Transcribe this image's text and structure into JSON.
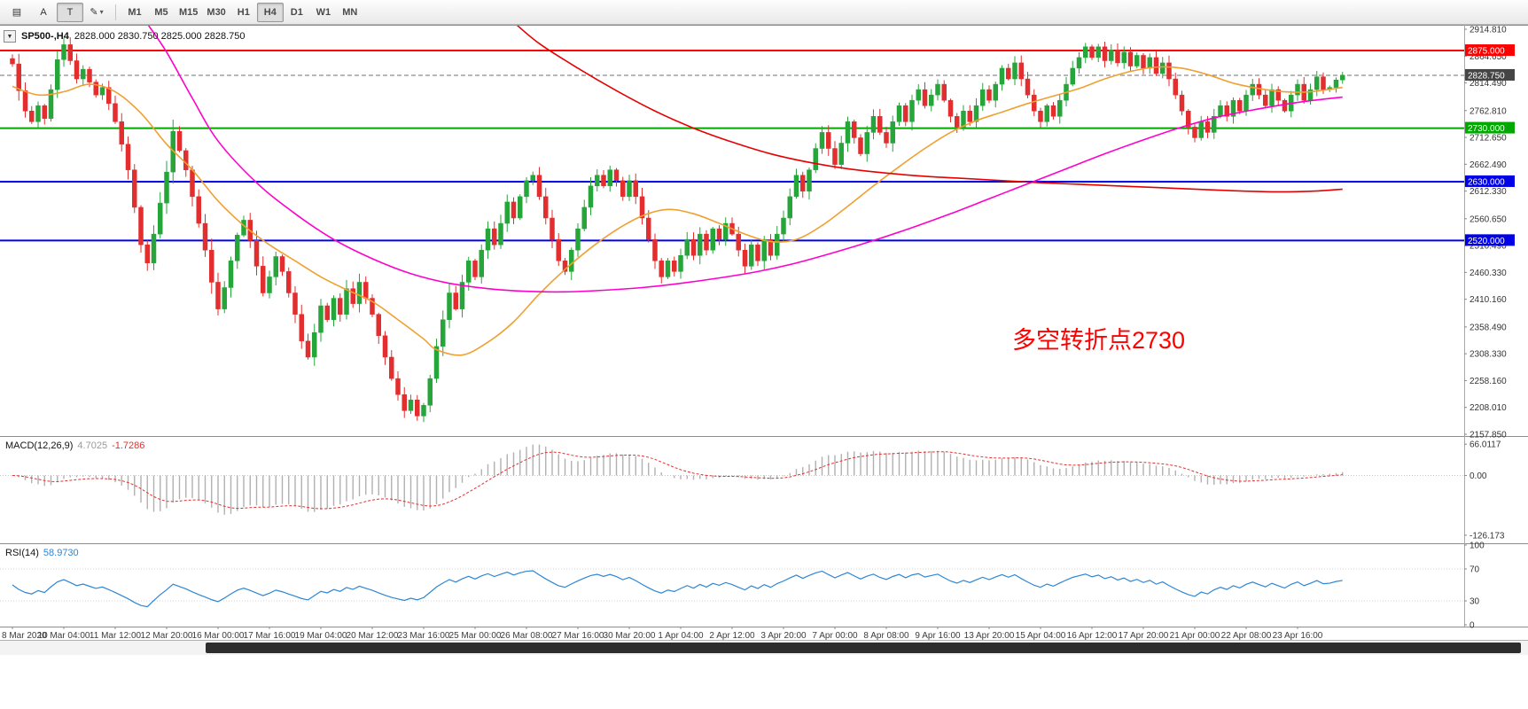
{
  "toolbar": {
    "left_buttons": [
      {
        "name": "tick-chart-icon",
        "glyph": "▤"
      },
      {
        "name": "cursor-tool",
        "glyph": "A"
      },
      {
        "name": "text-label-tool",
        "glyph": "T"
      },
      {
        "name": "draw-tool",
        "glyph": "✎",
        "caret": "▾"
      }
    ],
    "timeframes": [
      "M1",
      "M5",
      "M15",
      "M30",
      "H1",
      "H4",
      "D1",
      "W1",
      "MN"
    ],
    "selected_timeframe": "H4"
  },
  "window": {
    "collapse_glyph": "▼",
    "title_symbol": "SP500-,H4",
    "title_ohlc": "2828.000 2830.750 2825.000 2828.750"
  },
  "macd_panel": {
    "name": "MACD(12,26,9)",
    "value_main": "4.7025",
    "value_signal": "-1.7286"
  },
  "rsi_panel": {
    "name": "RSI(14)",
    "value": "58.9730"
  },
  "annotation": {
    "text": "多空转折点2730",
    "color": "#ff0000"
  },
  "chart_data": {
    "type": "candlestick",
    "symbol": "SP500-",
    "timeframe": "H4",
    "title": "SP500-,H4",
    "ohlc_current": {
      "open": 2828.0,
      "high": 2830.75,
      "low": 2825.0,
      "close": 2828.75
    },
    "colors": {
      "up": "#26a63a",
      "down": "#e22e2e",
      "bid": "#6f6f6f"
    },
    "y_axis": {
      "min": 2157.85,
      "max": 2914.81,
      "tick_labels": [
        "2914.810",
        "2864.650",
        "2814.490",
        "2762.810",
        "2712.650",
        "2662.490",
        "2612.330",
        "2560.650",
        "2510.490",
        "2460.330",
        "2410.160",
        "2358.490",
        "2308.330",
        "2258.160",
        "2208.010",
        "2157.850"
      ]
    },
    "closes": [
      2850,
      2800,
      2762,
      2742,
      2772,
      2748,
      2802,
      2858,
      2886,
      2856,
      2822,
      2840,
      2816,
      2792,
      2806,
      2776,
      2742,
      2700,
      2652,
      2582,
      2512,
      2478,
      2532,
      2590,
      2648,
      2724,
      2688,
      2652,
      2602,
      2552,
      2502,
      2442,
      2392,
      2432,
      2482,
      2530,
      2558,
      2520,
      2472,
      2422,
      2452,
      2490,
      2462,
      2422,
      2382,
      2332,
      2302,
      2348,
      2398,
      2372,
      2412,
      2382,
      2430,
      2402,
      2442,
      2412,
      2382,
      2342,
      2302,
      2262,
      2232,
      2202,
      2222,
      2192,
      2212,
      2262,
      2322,
      2372,
      2422,
      2392,
      2442,
      2482,
      2452,
      2502,
      2542,
      2512,
      2552,
      2592,
      2562,
      2602,
      2632,
      2642,
      2602,
      2562,
      2522,
      2482,
      2462,
      2502,
      2542,
      2582,
      2622,
      2642,
      2622,
      2652,
      2632,
      2602,
      2632,
      2602,
      2562,
      2522,
      2482,
      2452,
      2482,
      2462,
      2492,
      2522,
      2492,
      2532,
      2502,
      2542,
      2522,
      2552,
      2532,
      2502,
      2472,
      2512,
      2482,
      2522,
      2492,
      2532,
      2562,
      2602,
      2642,
      2612,
      2652,
      2692,
      2722,
      2692,
      2662,
      2702,
      2742,
      2712,
      2682,
      2722,
      2752,
      2722,
      2702,
      2742,
      2772,
      2742,
      2782,
      2802,
      2772,
      2792,
      2812,
      2782,
      2752,
      2732,
      2762,
      2742,
      2772,
      2802,
      2782,
      2812,
      2842,
      2822,
      2852,
      2822,
      2792,
      2762,
      2742,
      2772,
      2752,
      2782,
      2812,
      2842,
      2862,
      2882,
      2862,
      2882,
      2856,
      2876,
      2852,
      2872,
      2846,
      2866,
      2842,
      2862,
      2832,
      2852,
      2822,
      2792,
      2762,
      2732,
      2712,
      2742,
      2722,
      2752,
      2772,
      2752,
      2782,
      2762,
      2792,
      2812,
      2792,
      2772,
      2802,
      2782,
      2762,
      2792,
      2812,
      2782,
      2802,
      2826,
      2802,
      2806,
      2820,
      2828.75
    ],
    "hlines": [
      {
        "price": 2875.0,
        "color": "#ff0000",
        "label": "2875.000",
        "width": 2
      },
      {
        "price": 2828.75,
        "color": "#6f6f6f",
        "label": "2828.750",
        "width": 1,
        "dashed": true,
        "badge": "#454545"
      },
      {
        "price": 2730.0,
        "color": "#00a800",
        "label": "2730.000",
        "width": 2
      },
      {
        "price": 2630.0,
        "color": "#0000e6",
        "label": "2630.000",
        "width": 2
      },
      {
        "price": 2520.0,
        "color": "#0000e6",
        "label": "2520.000",
        "width": 2
      }
    ],
    "moving_averages": [
      {
        "name": "ma-fast",
        "color": "#f0a030",
        "points": [
          [
            0,
            2808
          ],
          [
            4,
            2792
          ],
          [
            8,
            2798
          ],
          [
            12,
            2812
          ],
          [
            16,
            2798
          ],
          [
            20,
            2758
          ],
          [
            24,
            2700
          ],
          [
            28,
            2652
          ],
          [
            32,
            2594
          ],
          [
            36,
            2548
          ],
          [
            40,
            2512
          ],
          [
            44,
            2482
          ],
          [
            48,
            2452
          ],
          [
            52,
            2428
          ],
          [
            56,
            2406
          ],
          [
            60,
            2372
          ],
          [
            64,
            2336
          ],
          [
            66,
            2316
          ],
          [
            70,
            2306
          ],
          [
            74,
            2330
          ],
          [
            78,
            2368
          ],
          [
            82,
            2420
          ],
          [
            86,
            2466
          ],
          [
            90,
            2506
          ],
          [
            94,
            2540
          ],
          [
            98,
            2566
          ],
          [
            102,
            2578
          ],
          [
            106,
            2570
          ],
          [
            110,
            2552
          ],
          [
            114,
            2532
          ],
          [
            118,
            2518
          ],
          [
            122,
            2522
          ],
          [
            126,
            2548
          ],
          [
            130,
            2584
          ],
          [
            134,
            2622
          ],
          [
            138,
            2658
          ],
          [
            142,
            2692
          ],
          [
            146,
            2722
          ],
          [
            150,
            2744
          ],
          [
            154,
            2760
          ],
          [
            158,
            2776
          ],
          [
            162,
            2790
          ],
          [
            166,
            2804
          ],
          [
            170,
            2822
          ],
          [
            174,
            2836
          ],
          [
            178,
            2844
          ],
          [
            182,
            2842
          ],
          [
            186,
            2830
          ],
          [
            190,
            2814
          ],
          [
            194,
            2804
          ],
          [
            198,
            2798
          ],
          [
            202,
            2798
          ],
          [
            207,
            2806
          ]
        ]
      },
      {
        "name": "ma-mid",
        "color": "#ff00cc",
        "points": [
          [
            21,
            2925
          ],
          [
            24,
            2872
          ],
          [
            28,
            2786
          ],
          [
            32,
            2706
          ],
          [
            38,
            2628
          ],
          [
            44,
            2570
          ],
          [
            50,
            2522
          ],
          [
            56,
            2486
          ],
          [
            62,
            2458
          ],
          [
            68,
            2440
          ],
          [
            74,
            2430
          ],
          [
            80,
            2425
          ],
          [
            86,
            2424
          ],
          [
            92,
            2427
          ],
          [
            98,
            2432
          ],
          [
            104,
            2440
          ],
          [
            110,
            2450
          ],
          [
            116,
            2462
          ],
          [
            122,
            2478
          ],
          [
            128,
            2498
          ],
          [
            134,
            2520
          ],
          [
            140,
            2544
          ],
          [
            146,
            2570
          ],
          [
            152,
            2598
          ],
          [
            158,
            2626
          ],
          [
            164,
            2654
          ],
          [
            170,
            2682
          ],
          [
            176,
            2708
          ],
          [
            182,
            2732
          ],
          [
            188,
            2752
          ],
          [
            194,
            2766
          ],
          [
            200,
            2778
          ],
          [
            204,
            2784
          ],
          [
            207,
            2788
          ]
        ]
      },
      {
        "name": "ma-slow",
        "color": "#e60000",
        "points": [
          [
            78,
            2928
          ],
          [
            82,
            2888
          ],
          [
            88,
            2842
          ],
          [
            94,
            2800
          ],
          [
            100,
            2762
          ],
          [
            106,
            2730
          ],
          [
            112,
            2704
          ],
          [
            118,
            2682
          ],
          [
            124,
            2666
          ],
          [
            130,
            2654
          ],
          [
            136,
            2646
          ],
          [
            142,
            2640
          ],
          [
            148,
            2636
          ],
          [
            154,
            2632
          ],
          [
            160,
            2628
          ],
          [
            166,
            2625
          ],
          [
            172,
            2622
          ],
          [
            178,
            2619
          ],
          [
            184,
            2616
          ],
          [
            190,
            2613
          ],
          [
            196,
            2611
          ],
          [
            202,
            2612
          ],
          [
            207,
            2616
          ]
        ]
      }
    ],
    "time_labels": [
      {
        "bar": 0,
        "text": "8 Mar 2020"
      },
      {
        "bar": 8,
        "text": "10 Mar 04:00"
      },
      {
        "bar": 16,
        "text": "11 Mar 12:00"
      },
      {
        "bar": 24,
        "text": "12 Mar 20:00"
      },
      {
        "bar": 32,
        "text": "16 Mar 00:00"
      },
      {
        "bar": 40,
        "text": "17 Mar 16:00"
      },
      {
        "bar": 48,
        "text": "19 Mar 04:00"
      },
      {
        "bar": 56,
        "text": "20 Mar 12:00"
      },
      {
        "bar": 64,
        "text": "23 Mar 16:00"
      },
      {
        "bar": 72,
        "text": "25 Mar 00:00"
      },
      {
        "bar": 80,
        "text": "26 Mar 08:00"
      },
      {
        "bar": 88,
        "text": "27 Mar 16:00"
      },
      {
        "bar": 96,
        "text": "30 Mar 20:00"
      },
      {
        "bar": 104,
        "text": "1 Apr 04:00"
      },
      {
        "bar": 112,
        "text": "2 Apr 12:00"
      },
      {
        "bar": 120,
        "text": "3 Apr 20:00"
      },
      {
        "bar": 128,
        "text": "7 Apr 00:00"
      },
      {
        "bar": 136,
        "text": "8 Apr 08:00"
      },
      {
        "bar": 144,
        "text": "9 Apr 16:00"
      },
      {
        "bar": 152,
        "text": "13 Apr 20:00"
      },
      {
        "bar": 160,
        "text": "15 Apr 04:00"
      },
      {
        "bar": 168,
        "text": "16 Apr 12:00"
      },
      {
        "bar": 176,
        "text": "17 Apr 20:00"
      },
      {
        "bar": 184,
        "text": "21 Apr 00:00"
      },
      {
        "bar": 192,
        "text": "22 Apr 08:00"
      },
      {
        "bar": 200,
        "text": "23 Apr 16:00"
      }
    ],
    "macd": {
      "fast": 12,
      "slow": 26,
      "signal": 9,
      "scale_min": -132,
      "scale_max": 72,
      "histogram_color": "#b0b0b0",
      "signal_color": "#e03131",
      "axis_ticks": [
        {
          "v": 66.0117,
          "text": "66.0117"
        },
        {
          "v": 0,
          "text": "0.00"
        },
        {
          "v": -126.173,
          "text": "-126.173"
        }
      ]
    },
    "rsi": {
      "period": 14,
      "line_color": "#2e86d4",
      "levels": [
        70,
        30
      ],
      "axis_ticks": [
        {
          "v": 100,
          "text": "100"
        },
        {
          "v": 70,
          "text": "70"
        },
        {
          "v": 30,
          "text": "30"
        },
        {
          "v": 0,
          "text": "0"
        }
      ]
    }
  }
}
